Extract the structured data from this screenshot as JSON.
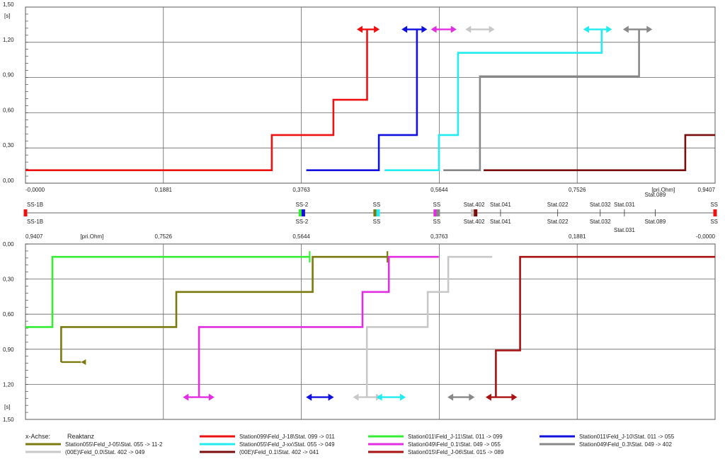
{
  "chart_data": {
    "type": "line",
    "upper": {
      "unit": "[s]",
      "y_ticks": [
        "1,50",
        "1,20",
        "0,90",
        "0,60",
        "0,30",
        "0,00"
      ],
      "y_tick_values": [
        1.5,
        1.2,
        0.9,
        0.6,
        0.3,
        0.0
      ],
      "x_ticks": [
        "-0,0000",
        "0,1881",
        "0,3763",
        "0,5644",
        "0,7526",
        "0,9407"
      ],
      "x_tick_values": [
        0,
        0.1881,
        0.3763,
        0.5644,
        0.7526,
        0.9407
      ],
      "x_unit": "[pri.Ohm]",
      "ylim": [
        0,
        1.5
      ],
      "xlim": [
        0,
        0.9407
      ],
      "series": [
        {
          "color": "#ee1111",
          "points": [
            [
              0,
              0.11
            ],
            [
              0.336,
              0.11
            ],
            [
              0.336,
              0.41
            ],
            [
              0.42,
              0.41
            ],
            [
              0.42,
              0.71
            ],
            [
              0.466,
              0.71
            ],
            [
              0.466,
              1.31
            ]
          ],
          "arrow": [
            0.452,
            0.483,
            1.31
          ]
        },
        {
          "color": "#1111dd",
          "points": [
            [
              0.383,
              0.11
            ],
            [
              0.482,
              0.11
            ],
            [
              0.482,
              0.41
            ],
            [
              0.534,
              0.41
            ],
            [
              0.534,
              1.31
            ]
          ],
          "arrow": [
            0.513,
            0.548,
            1.31
          ]
        },
        {
          "color": "#22ecf0",
          "points": [
            [
              0.49,
              0.11
            ],
            [
              0.564,
              0.11
            ],
            [
              0.564,
              0.41
            ],
            [
              0.59,
              0.41
            ],
            [
              0.59,
              1.11
            ],
            [
              0.786,
              1.11
            ],
            [
              0.786,
              1.31
            ]
          ],
          "arrow": [
            0.761,
            0.8,
            1.31
          ]
        },
        {
          "color": "#888888",
          "points": [
            [
              0.57,
              0.11
            ],
            [
              0.62,
              0.11
            ],
            [
              0.62,
              0.91
            ],
            [
              0.837,
              0.91
            ],
            [
              0.837,
              1.31
            ]
          ],
          "arrow": [
            0.815,
            0.855,
            1.31
          ]
        },
        {
          "color": "#e02ee0",
          "points": [],
          "arrow": [
            0.553,
            0.588,
            1.31
          ]
        },
        {
          "color": "#c8c8c8",
          "points": [],
          "arrow": [
            0.6,
            0.64,
            1.31
          ]
        },
        {
          "color": "#7a0e0e",
          "points": [
            [
              0.625,
              0.11
            ],
            [
              0.9,
              0.11
            ],
            [
              0.9,
              0.41
            ],
            [
              0.9407,
              0.41
            ]
          ],
          "arrow": null
        }
      ]
    },
    "lower": {
      "unit": "[s]",
      "y_ticks": [
        "0,00",
        "0,30",
        "0,60",
        "0,90",
        "1,20",
        "1,50"
      ],
      "y_tick_values": [
        0,
        0.3,
        0.6,
        0.9,
        1.2,
        1.5
      ],
      "x_ticks": [
        "0,9407",
        "0,7526",
        "0,5644",
        "0,3763",
        "0,1881",
        "-0,0000"
      ],
      "x_tick_values": [
        0.9407,
        0.7526,
        0.5644,
        0.3763,
        0.1881,
        0
      ],
      "x_unit": "[pri.Ohm]",
      "ylim": [
        0,
        1.5
      ],
      "xlim": [
        0.9407,
        0
      ],
      "series": [
        {
          "color": "#33ee33",
          "points": [
            [
              0.9407,
              0.71
            ],
            [
              0.904,
              0.71
            ],
            [
              0.904,
              0.11
            ],
            [
              0.553,
              0.11
            ]
          ],
          "end": "bar"
        },
        {
          "color": "#7a7a10",
          "points": [
            [
              0.9407,
              null
            ],
            [
              0.892,
              1.01
            ],
            [
              0.892,
              0.71
            ],
            [
              0.735,
              0.71
            ],
            [
              0.735,
              0.41
            ],
            [
              0.549,
              0.41
            ],
            [
              0.549,
              0.11
            ],
            [
              0.447,
              0.11
            ]
          ],
          "end": "bar",
          "start_arrow": [
            0.892,
            0.865,
            1.01
          ]
        },
        {
          "color": "#e02ee0",
          "points": [
            [
              0.704,
              1.31
            ],
            [
              0.704,
              0.71
            ],
            [
              0.481,
              0.71
            ],
            [
              0.481,
              0.41
            ],
            [
              0.445,
              0.41
            ],
            [
              0.445,
              0.11
            ],
            [
              0.377,
              0.11
            ]
          ],
          "arrow": [
            0.726,
            0.683,
            1.31
          ]
        },
        {
          "color": "#c8c8c8",
          "points": [
            [
              0.475,
              1.31
            ],
            [
              0.475,
              0.71
            ],
            [
              0.392,
              0.71
            ],
            [
              0.392,
              0.41
            ],
            [
              0.364,
              0.41
            ],
            [
              0.364,
              0.11
            ],
            [
              0.304,
              0.11
            ]
          ],
          "arrow": [
            0.494,
            0.455,
            1.31
          ]
        },
        {
          "color": "#1111dd",
          "points": [],
          "arrow": [
            0.558,
            0.52,
            1.31
          ]
        },
        {
          "color": "#22ecf0",
          "points": [],
          "arrow": [
            0.462,
            0.422,
            1.31
          ]
        },
        {
          "color": "#888888",
          "points": [],
          "arrow": [
            0.365,
            0.328,
            1.31
          ]
        },
        {
          "color": "#aa1111",
          "points": [
            [
              0.299,
              1.31
            ],
            [
              0.299,
              0.91
            ],
            [
              0.266,
              0.91
            ],
            [
              0.266,
              0.11
            ],
            [
              0,
              0.11
            ]
          ],
          "arrow": [
            0.313,
            0.27,
            1.31
          ]
        }
      ]
    },
    "stations_top": [
      {
        "label": "SS-1B",
        "x": 0.0
      },
      {
        "label": "SS-2",
        "x": 0.377
      },
      {
        "label": "SS",
        "x": 0.479
      },
      {
        "label": "SS",
        "x": 0.561
      },
      {
        "label": "Stat.402",
        "x": 0.612
      },
      {
        "label": "Stat.041",
        "x": 0.648
      },
      {
        "label": "Stat.022",
        "x": 0.726
      },
      {
        "label": "Stat.032",
        "x": 0.784
      },
      {
        "label": "Stat.031",
        "x": 0.817
      },
      {
        "label": "Stat.089",
        "x": 0.859
      },
      {
        "label": "SS",
        "x": 0.9407
      }
    ],
    "stations_bottom": [
      {
        "label": "SS-1B",
        "x": 0.0
      },
      {
        "label": "SS-2",
        "x": 0.377
      },
      {
        "label": "SS",
        "x": 0.479
      },
      {
        "label": "SS",
        "x": 0.561
      },
      {
        "label": "Stat.402",
        "x": 0.612
      },
      {
        "label": "Stat.041",
        "x": 0.648
      },
      {
        "label": "Stat.022",
        "x": 0.726
      },
      {
        "label": "Stat.032",
        "x": 0.784
      },
      {
        "label": "Stat.031",
        "x": 0.817
      },
      {
        "label": "Stat.089",
        "x": 0.859
      },
      {
        "label": "SS",
        "x": 0.9407
      }
    ],
    "station_markers": [
      {
        "x": 0.0,
        "color": "#ee1111"
      },
      {
        "x": 0.375,
        "color": "#33ee33"
      },
      {
        "x": 0.379,
        "color": "#1111dd"
      },
      {
        "x": 0.477,
        "color": "#7a7a10"
      },
      {
        "x": 0.481,
        "color": "#22ecf0"
      },
      {
        "x": 0.559,
        "color": "#e02ee0"
      },
      {
        "x": 0.563,
        "color": "#888888"
      },
      {
        "x": 0.61,
        "color": "#c8c8c8"
      },
      {
        "x": 0.614,
        "color": "#7a0e0e"
      },
      {
        "x": 0.9407,
        "color": "#ee1111"
      }
    ],
    "legend": {
      "axis_label": "x-Achse:",
      "axis_value": "Reaktanz",
      "entries": [
        {
          "color": "#ee1111",
          "label": "Station099\\Feld_J-18\\Stat. 099 -> 011"
        },
        {
          "color": "#33ee33",
          "label": "Station011\\Feld_J-11\\Stat. 011 -> 099"
        },
        {
          "color": "#1111dd",
          "label": "Station011\\Feld_J-10\\Stat. 011 -> 055"
        },
        {
          "color": "#7a7a10",
          "label": "Station055\\Feld_J-05\\Stat. 055 -> 11-2"
        },
        {
          "color": "#22ecf0",
          "label": "Station055\\Feld_J-xx\\Stat. 055 -> 049"
        },
        {
          "color": "#e02ee0",
          "label": "Station049\\Feld_0.1\\Stat. 049 -> 055"
        },
        {
          "color": "#888888",
          "label": "Station049\\Feld_0.3\\Stat. 049 -> 402"
        },
        {
          "color": "#c8c8c8",
          "label": "(00E)\\Feld_0.0\\Stat. 402 -> 049"
        },
        {
          "color": "#7a0e0e",
          "label": "(00E)\\Feld_0.1\\Stat. 402 -> 041"
        },
        {
          "color": "#aa1111",
          "label": "Station015\\Feld_J-06\\Stat. 015 -> 089"
        }
      ]
    }
  }
}
